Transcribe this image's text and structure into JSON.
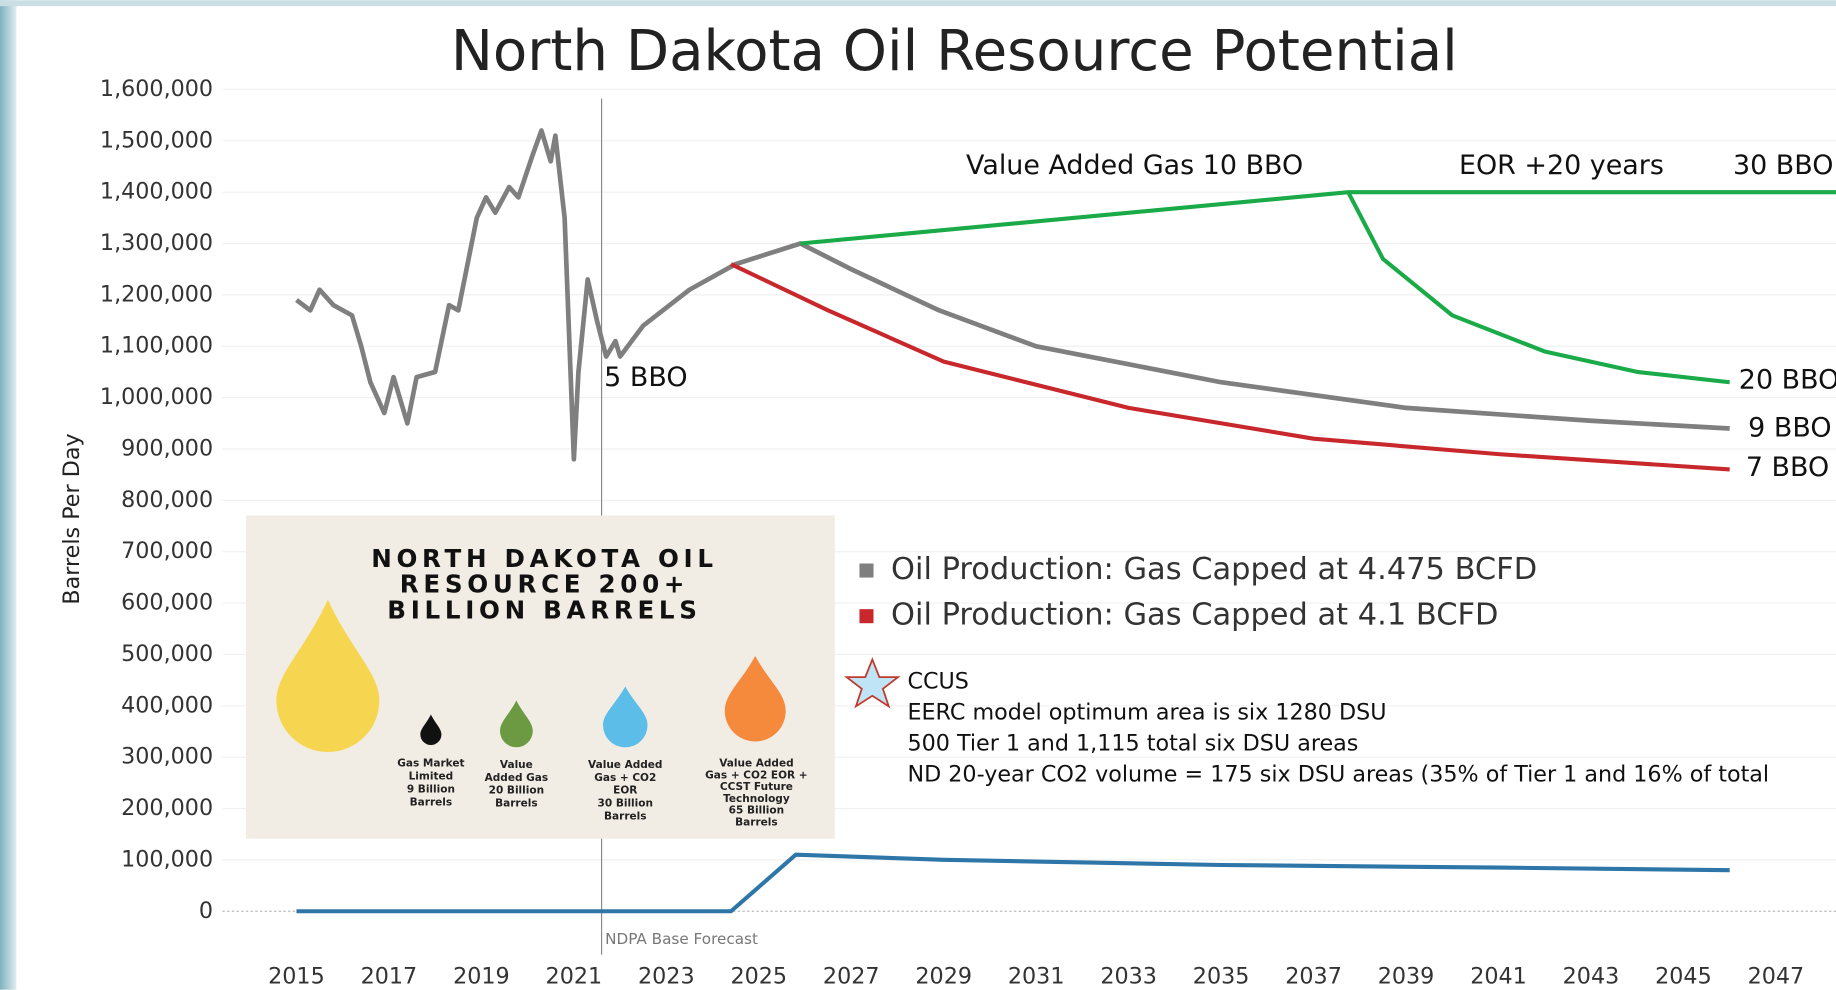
{
  "chart_data": {
    "type": "line",
    "title": "North Dakota Oil Resource Potential",
    "y_label": "Barrels Per Day",
    "xlim": [
      2013.4,
      2048.3
    ],
    "ylim": [
      0,
      1600000
    ],
    "xticks": [
      2015,
      2017,
      2019,
      2021,
      2023,
      2025,
      2027,
      2029,
      2031,
      2033,
      2035,
      2037,
      2039,
      2041,
      2043,
      2045,
      2047
    ],
    "yticks": [
      0,
      {
        "value": 100000,
        "label": "100,000"
      },
      {
        "value": 200000,
        "label": "200,000"
      },
      {
        "value": 300000,
        "label": "300,000"
      },
      {
        "value": 400000,
        "label": "400,000"
      },
      {
        "value": 500000,
        "label": "500,000"
      },
      {
        "value": 600000,
        "label": "600,000"
      },
      {
        "value": 700000,
        "label": "700,000"
      },
      {
        "value": 800000,
        "label": "800,000"
      },
      {
        "value": 900000,
        "label": "900,000"
      },
      {
        "value": 1000000,
        "label": "1,000,000"
      },
      {
        "value": 1100000,
        "label": "1,100,000"
      },
      {
        "value": 1200000,
        "label": "1,200,000"
      },
      {
        "value": 1300000,
        "label": "1,300,000"
      },
      {
        "value": 1400000,
        "label": "1,400,000"
      },
      {
        "value": 1500000,
        "label": "1,500,000"
      },
      {
        "value": 1600000,
        "label": "1,600,000"
      }
    ],
    "grid": true,
    "reference_x": 2021.6,
    "reference_label": "NDPA Base Forecast",
    "series": [
      {
        "name": "Oil Production: Gas Capped at 4.475 BCFD",
        "color": "#7f7f7f",
        "x": [
          2015.0,
          2015.3,
          2015.5,
          2015.8,
          2016.2,
          2016.4,
          2016.6,
          2016.9,
          2017.1,
          2017.4,
          2017.6,
          2018.0,
          2018.3,
          2018.5,
          2018.9,
          2019.1,
          2019.3,
          2019.6,
          2019.8,
          2020.1,
          2020.3,
          2020.5,
          2020.6,
          2020.8,
          2021.0,
          2021.1,
          2021.3,
          2021.5,
          2021.7,
          2021.9,
          2022.0,
          2022.5,
          2023.5,
          2024.5,
          2025.9,
          2027.0,
          2028.9,
          2031.0,
          2035.0,
          2039.0,
          2043.0,
          2046.0
        ],
        "values": [
          1190000,
          1170000,
          1210000,
          1180000,
          1160000,
          1100000,
          1030000,
          970000,
          1040000,
          950000,
          1040000,
          1050000,
          1180000,
          1170000,
          1350000,
          1390000,
          1360000,
          1410000,
          1390000,
          1470000,
          1520000,
          1460000,
          1510000,
          1350000,
          880000,
          1050000,
          1230000,
          1150000,
          1080000,
          1110000,
          1080000,
          1140000,
          1210000,
          1260000,
          1300000,
          1250000,
          1170000,
          1100000,
          1030000,
          980000,
          955000,
          940000
        ]
      },
      {
        "name": "Oil Production: Gas Capped at 4.1 BCFD",
        "color": "#c8282c",
        "x": [
          2024.4,
          2026.5,
          2029.0,
          2033.0,
          2037.0,
          2041.0,
          2046.0
        ],
        "values": [
          1260000,
          1170000,
          1070000,
          980000,
          920000,
          890000,
          860000
        ]
      },
      {
        "color": "#1aab48",
        "x": [
          2025.9,
          2037.75,
          2048.3
        ],
        "values": [
          1300000,
          1400000,
          1400000
        ]
      },
      {
        "color": "#1aab48",
        "x": [
          2037.75,
          2038.5,
          2040.0,
          2042.0,
          2044.0,
          2046.0
        ],
        "values": [
          1400000,
          1270000,
          1160000,
          1090000,
          1050000,
          1030000
        ]
      },
      {
        "color": "#2e75a8",
        "x": [
          2015.0,
          2024.4,
          2025.8,
          2029.0,
          2035.0,
          2041.0,
          2046.0
        ],
        "values": [
          0,
          0,
          110000,
          100000,
          90000,
          85000,
          80000
        ]
      }
    ],
    "annotations": [
      "5 BBO",
      "Value Added Gas 10 BBO",
      "EOR +20 years",
      "30 BBO",
      "20 BBO",
      "9 BBO",
      "7 BBO"
    ],
    "ccus_note": [
      "CCUS",
      "EERC model optimum area is six 1280 DSU",
      "500 Tier 1 and 1,115 total six DSU areas",
      "ND 20-year CO2 volume  =  175 six DSU areas (35% of Tier 1 and 16% of total"
    ],
    "inset": {
      "title": [
        "NORTH DAKOTA OIL",
        "RESOURCE 200+",
        "BILLION BARRELS"
      ],
      "drops": [
        [
          "Gas Market",
          "Limited",
          "9 Billion",
          "Barrels"
        ],
        [
          "Value",
          "Added Gas",
          "20 Billion",
          "Barrels"
        ],
        [
          "Value Added",
          "Gas + CO2",
          "EOR",
          "30 Billion",
          "Barrels"
        ],
        [
          "Value Added",
          "Gas + CO2 EOR +",
          "CCST Future",
          "Technology",
          "65 Billion",
          "Barrels"
        ]
      ]
    }
  }
}
